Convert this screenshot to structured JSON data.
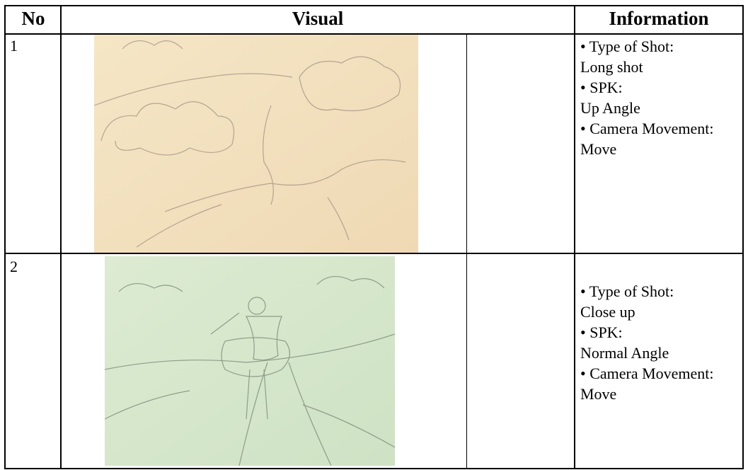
{
  "table": {
    "header": [
      "No",
      "Visual",
      "Information"
    ],
    "rows": [
      {
        "no": "1",
        "info": [
          "• Type of Shot:",
          "Long shot",
          "• SPK:",
          "Up Angle",
          "• Camera Movement:",
          "Move"
        ]
      },
      {
        "no": "2",
        "info": [
          "• Type of Shot:",
          "Close up",
          "• SPK:",
          "Normal Angle",
          "• Camera Movement:",
          "Move"
        ]
      }
    ]
  }
}
